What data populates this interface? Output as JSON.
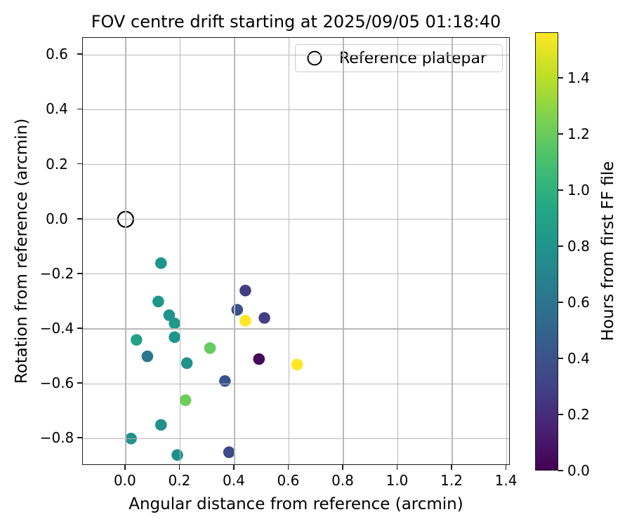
{
  "chart_data": {
    "type": "scatter",
    "title": "FOV centre drift starting at 2025/09/05 01:18:40",
    "xlabel": "Angular distance from reference (arcmin)",
    "ylabel": "Rotation from reference (arcmin)",
    "xlim": [
      -0.157,
      1.414
    ],
    "ylim": [
      -0.899,
      0.662
    ],
    "grid": true,
    "xticks": {
      "values": [
        0.0,
        0.2,
        0.4,
        0.6,
        0.8,
        1.0,
        1.2,
        1.4
      ],
      "labels": [
        "0.0",
        "0.2",
        "0.4",
        "0.6",
        "0.8",
        "1.0",
        "1.2",
        "1.4"
      ]
    },
    "yticks": {
      "values": [
        0.6,
        0.4,
        0.2,
        0.0,
        -0.2,
        -0.4,
        -0.6,
        -0.8
      ],
      "labels": [
        "0.6",
        "0.4",
        "0.2",
        "0.0",
        "−0.2",
        "−0.4",
        "−0.6",
        "−0.8"
      ]
    },
    "legend": {
      "label": "Reference platepar",
      "position": "upper right"
    },
    "reference_point": {
      "x": 0.0,
      "y": 0.0,
      "marker": "open-circle",
      "edge_color": "#000000"
    },
    "points": [
      {
        "x": 0.13,
        "y": -0.16,
        "hours": 0.8,
        "color": "#1f968b"
      },
      {
        "x": 0.12,
        "y": -0.3,
        "hours": 0.8,
        "color": "#1f968b"
      },
      {
        "x": 0.16,
        "y": -0.35,
        "hours": 0.78,
        "color": "#21918c"
      },
      {
        "x": 0.18,
        "y": -0.38,
        "hours": 0.82,
        "color": "#1f9a8a"
      },
      {
        "x": 0.18,
        "y": -0.43,
        "hours": 0.8,
        "color": "#1f968b"
      },
      {
        "x": 0.04,
        "y": -0.44,
        "hours": 0.9,
        "color": "#22a285"
      },
      {
        "x": 0.08,
        "y": -0.5,
        "hours": 0.63,
        "color": "#2a788e"
      },
      {
        "x": 0.31,
        "y": -0.47,
        "hours": 1.18,
        "color": "#63cb5f"
      },
      {
        "x": 0.225,
        "y": -0.525,
        "hours": 0.78,
        "color": "#21918c"
      },
      {
        "x": 0.44,
        "y": -0.26,
        "hours": 0.33,
        "color": "#433d84"
      },
      {
        "x": 0.41,
        "y": -0.33,
        "hours": 0.45,
        "color": "#3b528b"
      },
      {
        "x": 0.44,
        "y": -0.37,
        "hours": 1.52,
        "color": "#fde725"
      },
      {
        "x": 0.51,
        "y": -0.36,
        "hours": 0.34,
        "color": "#423f85"
      },
      {
        "x": 0.49,
        "y": -0.51,
        "hours": 0.05,
        "color": "#46085c"
      },
      {
        "x": 0.63,
        "y": -0.53,
        "hours": 1.5,
        "color": "#fbe723"
      },
      {
        "x": 0.365,
        "y": -0.59,
        "hours": 0.46,
        "color": "#39538b"
      },
      {
        "x": 0.22,
        "y": -0.66,
        "hours": 1.22,
        "color": "#6ccd5a"
      },
      {
        "x": 0.13,
        "y": -0.75,
        "hours": 0.78,
        "color": "#21918c"
      },
      {
        "x": 0.02,
        "y": -0.8,
        "hours": 0.78,
        "color": "#21918c"
      },
      {
        "x": 0.19,
        "y": -0.86,
        "hours": 0.77,
        "color": "#1f918d"
      },
      {
        "x": 0.38,
        "y": -0.85,
        "hours": 0.4,
        "color": "#3e4989"
      }
    ],
    "colorbar": {
      "label": "Hours from first FF file",
      "vmin": 0.0,
      "vmax": 1.5625,
      "ticks": {
        "values": [
          0.0,
          0.2,
          0.4,
          0.6,
          0.8,
          1.0,
          1.2,
          1.4
        ],
        "labels": [
          "0.0",
          "0.2",
          "0.4",
          "0.6",
          "0.8",
          "1.0",
          "1.2",
          "1.4"
        ]
      },
      "colormap": "viridis",
      "colormap_stops": [
        "#440154",
        "#482475",
        "#414487",
        "#355f8d",
        "#2a788e",
        "#21918c",
        "#22a884",
        "#44bf70",
        "#7ad151",
        "#bddf26",
        "#fde725"
      ]
    }
  }
}
